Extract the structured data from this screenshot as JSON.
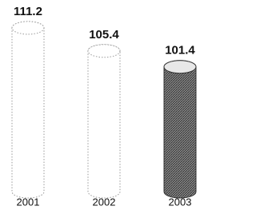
{
  "chart_data": {
    "type": "cylinder",
    "categories": [
      "2001",
      "2002",
      "2003"
    ],
    "values": [
      111.2,
      105.4,
      101.4
    ],
    "colors": [
      "#ffffff",
      "#ffffff",
      "#6e6e6e"
    ],
    "ylim": [
      70,
      115
    ]
  }
}
